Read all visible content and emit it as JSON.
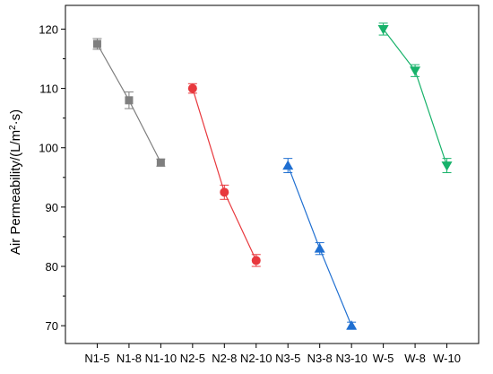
{
  "chart_data": {
    "type": "line",
    "categories": [
      "N1-5",
      "N1-8",
      "N1-10",
      "N2-5",
      "N2-8",
      "N2-10",
      "N3-5",
      "N3-8",
      "N3-10",
      "W-5",
      "W-8",
      "W-10"
    ],
    "ylabel": {
      "base": "Air Permeability/(L/m",
      "sup": "2",
      "tail": "·s)"
    },
    "ylim": [
      67,
      124
    ],
    "yticks": [
      70,
      80,
      90,
      100,
      110,
      120
    ],
    "grid": false,
    "series": [
      {
        "color": "#7f7f7f",
        "marker": "square",
        "x": [
          "N1-5",
          "N1-8",
          "N1-10"
        ],
        "values": [
          117.5,
          108.0,
          97.5
        ],
        "errors": [
          0.9,
          1.4,
          0.6
        ]
      },
      {
        "color": "#e8383d",
        "marker": "circle",
        "x": [
          "N2-5",
          "N2-8",
          "N2-10"
        ],
        "values": [
          110.0,
          92.5,
          81.0
        ],
        "errors": [
          0.8,
          1.2,
          1.0
        ]
      },
      {
        "color": "#1f6fd1",
        "marker": "triangle-up",
        "x": [
          "N3-5",
          "N3-8",
          "N3-10"
        ],
        "values": [
          97.0,
          83.0,
          70.0
        ],
        "errors": [
          1.2,
          1.0,
          0.6
        ]
      },
      {
        "color": "#17b26a",
        "marker": "triangle-down",
        "x": [
          "W-5",
          "W-8",
          "W-10"
        ],
        "values": [
          120.0,
          113.0,
          97.0
        ],
        "errors": [
          1.0,
          1.0,
          1.2
        ]
      }
    ]
  }
}
